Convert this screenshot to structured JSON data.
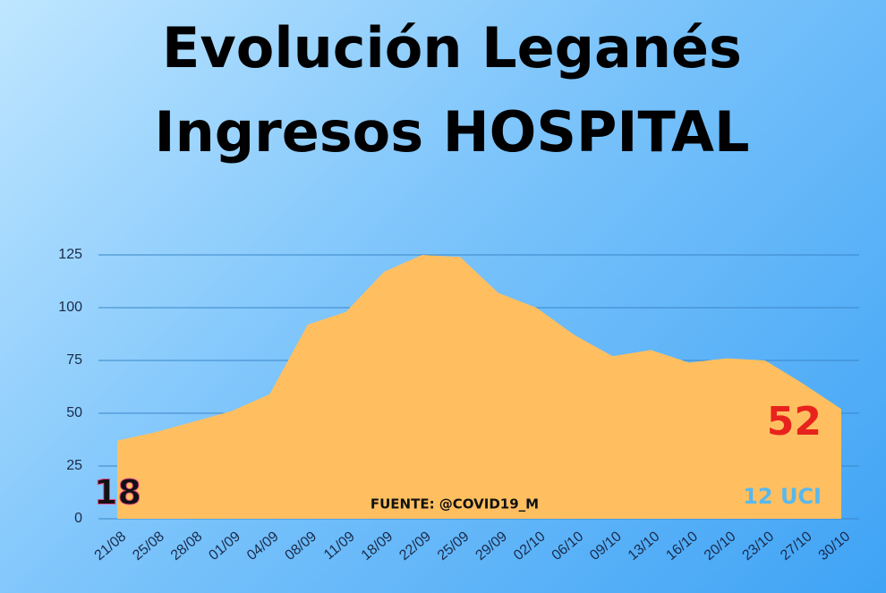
{
  "chart_data": {
    "type": "area",
    "title_lines": [
      "Evolución Leganés",
      "Ingresos HOSPITAL"
    ],
    "categories": [
      "21/08",
      "25/08",
      "28/08",
      "01/09",
      "04/09",
      "08/09",
      "11/09",
      "18/09",
      "22/09",
      "25/09",
      "29/09",
      "02/10",
      "06/10",
      "09/10",
      "13/10",
      "16/10",
      "20/10",
      "23/10",
      "27/10",
      "30/10"
    ],
    "values": [
      37,
      41,
      46,
      51,
      59,
      92,
      98,
      117,
      125,
      124,
      107,
      100,
      87,
      77,
      80,
      74,
      76,
      75,
      64,
      52
    ],
    "color": "#ffbf60",
    "ylim": [
      0,
      125
    ],
    "yticks": [
      0,
      25,
      50,
      75,
      100,
      125
    ],
    "grid": true,
    "annotations": [
      "18",
      "52",
      "FUENTE: @COVID19_M",
      "12 UCI"
    ]
  }
}
